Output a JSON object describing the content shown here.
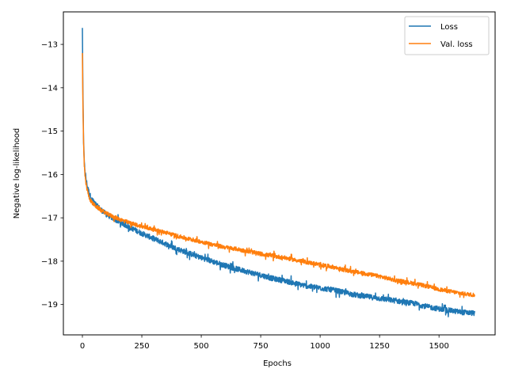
{
  "chart_data": {
    "type": "line",
    "title": "",
    "xlabel": "Epochs",
    "ylabel": "Negative log-likelihood",
    "xlim": [
      -80,
      1736
    ],
    "ylim": [
      -19.7,
      -12.25
    ],
    "xticks": [
      0,
      250,
      500,
      750,
      1000,
      1250,
      1500
    ],
    "xtick_labels": [
      "0",
      "250",
      "500",
      "750",
      "1000",
      "1250",
      "1500"
    ],
    "yticks": [
      -19,
      -18,
      -17,
      -16,
      -15,
      -14,
      -13
    ],
    "ytick_labels": [
      "−19",
      "−18",
      "−17",
      "−16",
      "−15",
      "−14",
      "−13"
    ],
    "grid": false,
    "legend_position": "top-right",
    "series": [
      {
        "name": "Loss",
        "color": "#1f77b4",
        "noise": 0.06,
        "x": [
          0,
          2,
          5,
          8,
          10,
          15,
          20,
          30,
          40,
          50,
          60,
          80,
          100,
          125,
          150,
          200,
          250,
          300,
          350,
          400,
          450,
          500,
          550,
          600,
          650,
          700,
          750,
          800,
          850,
          900,
          950,
          1000,
          1050,
          1100,
          1150,
          1200,
          1250,
          1300,
          1350,
          1400,
          1450,
          1500,
          1550,
          1600,
          1650
        ],
        "y": [
          -12.62,
          -14.0,
          -15.25,
          -15.75,
          -15.85,
          -16.1,
          -16.25,
          -16.45,
          -16.58,
          -16.65,
          -16.72,
          -16.82,
          -16.92,
          -17.0,
          -17.08,
          -17.22,
          -17.36,
          -17.48,
          -17.6,
          -17.72,
          -17.82,
          -17.92,
          -18.01,
          -18.1,
          -18.18,
          -18.25,
          -18.32,
          -18.4,
          -18.45,
          -18.52,
          -18.58,
          -18.62,
          -18.66,
          -18.72,
          -18.78,
          -18.82,
          -18.86,
          -18.9,
          -18.94,
          -18.98,
          -19.05,
          -19.1,
          -19.14,
          -19.18,
          -19.2
        ]
      },
      {
        "name": "Val. loss",
        "color": "#ff7f0e",
        "noise": 0.045,
        "x": [
          0,
          2,
          5,
          8,
          10,
          15,
          20,
          30,
          40,
          50,
          60,
          80,
          100,
          125,
          150,
          200,
          250,
          300,
          350,
          400,
          450,
          500,
          550,
          600,
          650,
          700,
          750,
          800,
          850,
          900,
          950,
          1000,
          1050,
          1100,
          1150,
          1200,
          1250,
          1300,
          1350,
          1400,
          1450,
          1500,
          1550,
          1600,
          1650
        ],
        "y": [
          -13.2,
          -14.3,
          -15.3,
          -15.8,
          -15.95,
          -16.2,
          -16.35,
          -16.55,
          -16.65,
          -16.7,
          -16.75,
          -16.82,
          -16.9,
          -16.96,
          -17.02,
          -17.12,
          -17.2,
          -17.27,
          -17.34,
          -17.42,
          -17.49,
          -17.55,
          -17.62,
          -17.68,
          -17.72,
          -17.78,
          -17.83,
          -17.88,
          -17.92,
          -17.98,
          -18.03,
          -18.08,
          -18.13,
          -18.2,
          -18.25,
          -18.3,
          -18.35,
          -18.42,
          -18.47,
          -18.52,
          -18.58,
          -18.65,
          -18.7,
          -18.75,
          -18.78
        ]
      }
    ]
  }
}
